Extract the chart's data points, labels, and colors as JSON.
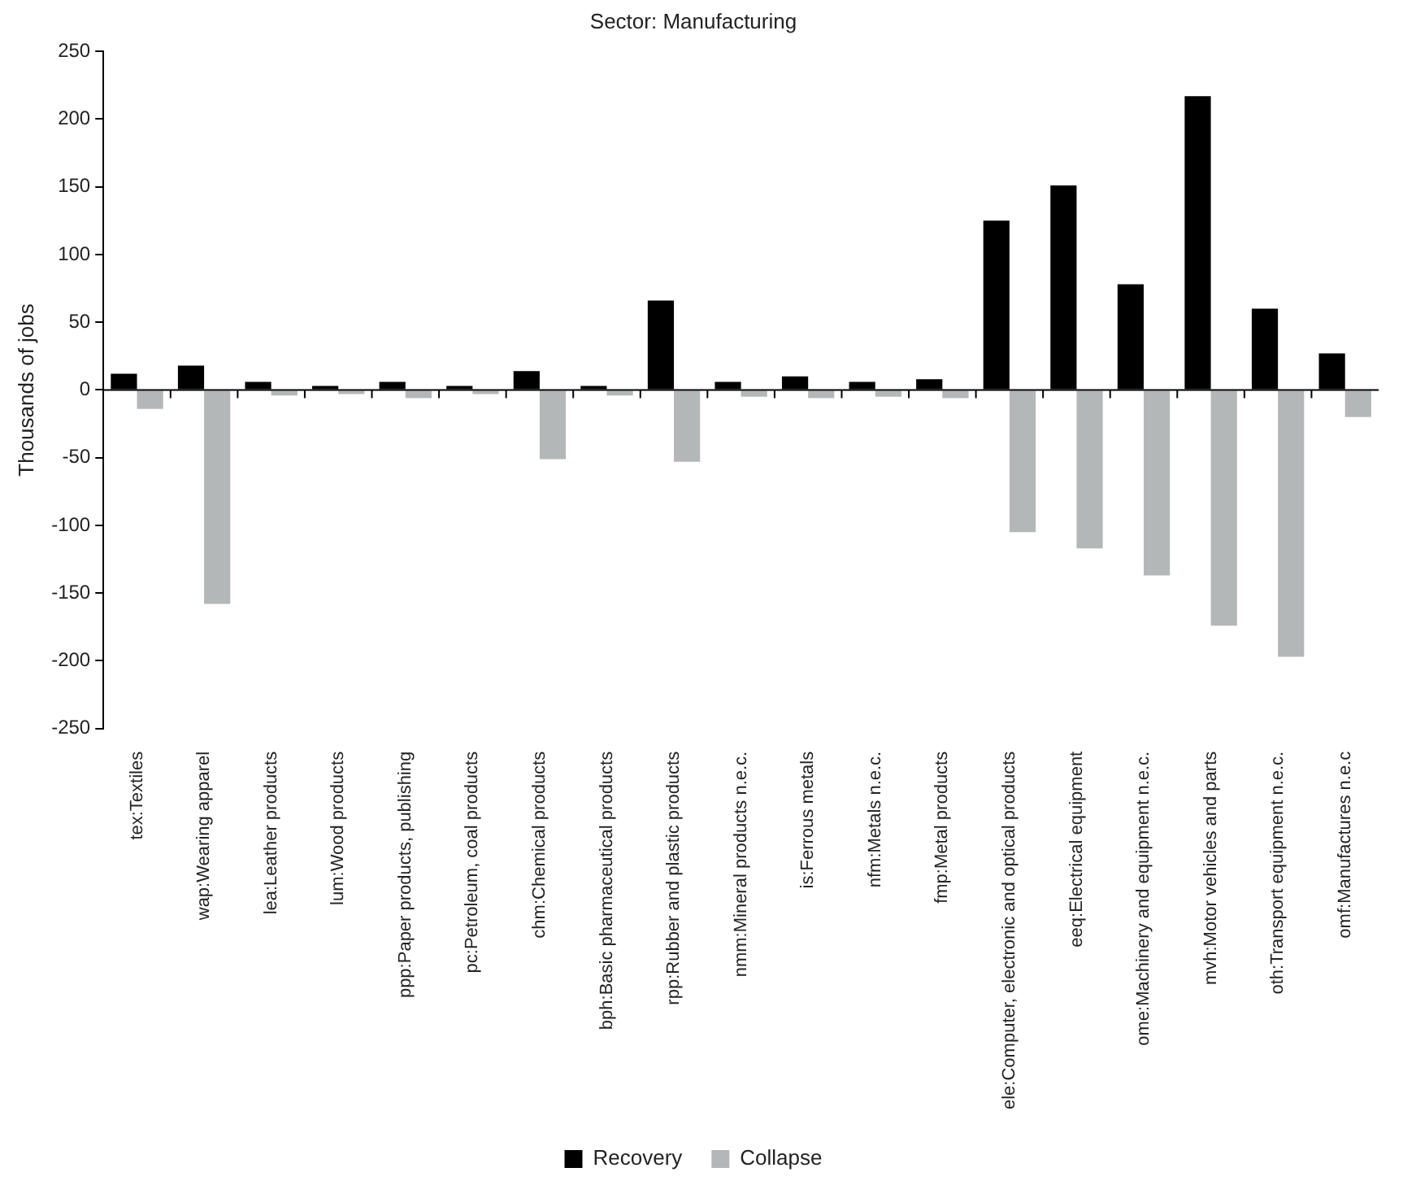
{
  "chart_data": {
    "type": "bar",
    "title": "Sector: Manufacturing",
    "ylabel": "Thousands of jobs",
    "categories": [
      "tex:Textiles",
      "wap:Wearing apparel",
      "lea:Leather products",
      "lum:Wood products",
      "ppp:Paper products, publishing",
      "pc:Petroleum, coal products",
      "chm:Chemical products",
      "bph:Basic pharmaceutical products",
      "rpp:Rubber and plastic products",
      "nmm:Mineral products n.e.c.",
      "is:Ferrous metals",
      "nfm:Metals n.e.c.",
      "fmp:Metal products",
      "ele:Computer, electronic and optical products",
      "eeq:Electrical equipment",
      "ome:Machinery and equipment n.e.c.",
      "mvh:Motor vehicles and parts",
      "oth:Transport equipment n.e.c.",
      "omf:Manufactures n.e.c"
    ],
    "series": [
      {
        "name": "Recovery",
        "color": "#000000",
        "values": [
          12,
          18,
          6,
          3,
          6,
          3,
          14,
          3,
          66,
          6,
          10,
          6,
          8,
          125,
          151,
          78,
          217,
          60,
          27
        ]
      },
      {
        "name": "Collapse",
        "color": "#b4b7b7",
        "values": [
          -14,
          -158,
          -4,
          -3,
          -6,
          -3,
          -51,
          -4,
          -53,
          -5,
          -6,
          -5,
          -6,
          -105,
          -117,
          -137,
          -174,
          -197,
          -20
        ]
      }
    ],
    "ylim": [
      -250,
      250
    ],
    "yticks": [
      -250,
      -200,
      -150,
      -100,
      -50,
      0,
      50,
      100,
      150,
      200,
      250
    ],
    "legend": "bottom"
  }
}
